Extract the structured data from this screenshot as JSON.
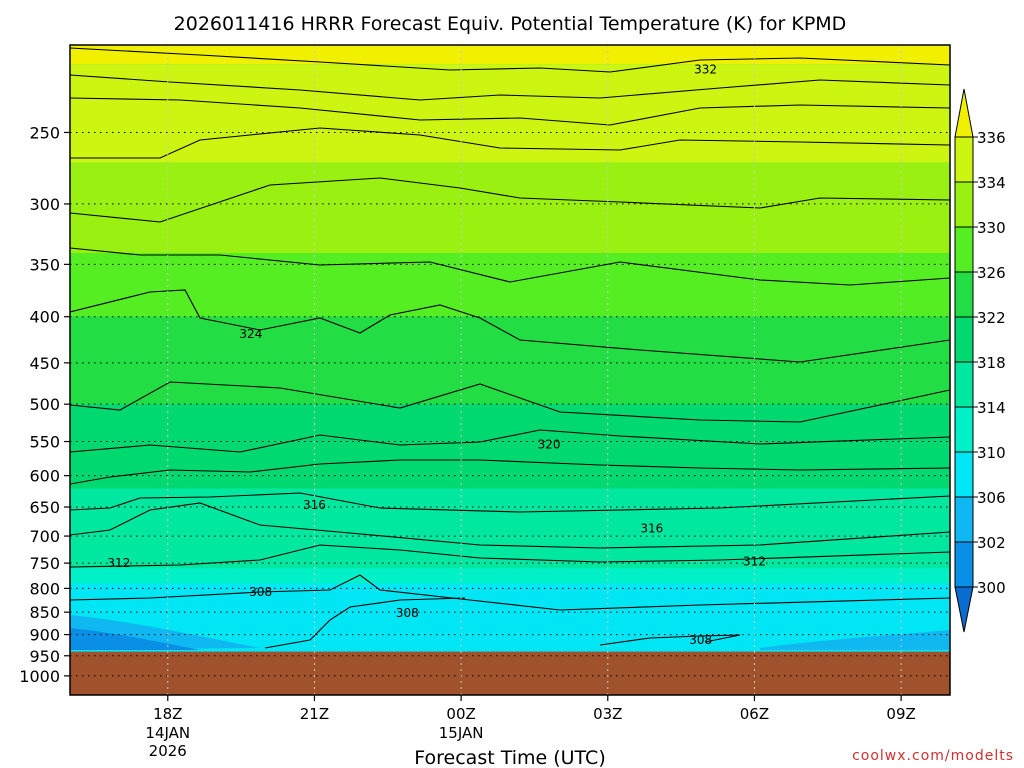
{
  "chart_data": {
    "type": "contour",
    "title": "2026011416 HRRR Forecast Equiv. Potential Temperature (K) for KPMD",
    "xlabel": "Forecast Time (UTC)",
    "credit": "coolwx.com/modelts",
    "x_ticks": [
      {
        "hour": 2,
        "label": "18Z",
        "sub1": "14JAN",
        "sub2": "2026"
      },
      {
        "hour": 5,
        "label": "21Z",
        "sub1": "",
        "sub2": ""
      },
      {
        "hour": 8,
        "label": "00Z",
        "sub1": "15JAN",
        "sub2": ""
      },
      {
        "hour": 11,
        "label": "03Z",
        "sub1": "",
        "sub2": ""
      },
      {
        "hour": 14,
        "label": "06Z",
        "sub1": "",
        "sub2": ""
      },
      {
        "hour": 17,
        "label": "09Z",
        "sub1": "",
        "sub2": ""
      }
    ],
    "x_range_hours": [
      0,
      18
    ],
    "y_ticks": [
      250,
      300,
      350,
      400,
      450,
      500,
      550,
      600,
      650,
      700,
      750,
      800,
      850,
      900,
      950,
      1000
    ],
    "y_range_hpa": [
      1050,
      200
    ],
    "ground_top_hpa": 940,
    "colorbar": {
      "levels": [
        300,
        302,
        306,
        310,
        314,
        318,
        322,
        326,
        330,
        334,
        336
      ],
      "colors": [
        "#0a6cd0",
        "#0a8fe6",
        "#10b8f2",
        "#00e6f5",
        "#00f0c8",
        "#00e8a0",
        "#00d870",
        "#22dd44",
        "#55ee22",
        "#99f011",
        "#ccf511",
        "#f0f000"
      ]
    },
    "contour_labels": [
      {
        "value": "332",
        "hour": 13.0,
        "hpa": 213
      },
      {
        "value": "324",
        "hour": 3.7,
        "hpa": 418
      },
      {
        "value": "320",
        "hour": 9.8,
        "hpa": 554
      },
      {
        "value": "316",
        "hour": 5.0,
        "hpa": 647
      },
      {
        "value": "316",
        "hour": 11.9,
        "hpa": 687
      },
      {
        "value": "312",
        "hour": 1.0,
        "hpa": 750
      },
      {
        "value": "312",
        "hour": 14.0,
        "hpa": 747
      },
      {
        "value": "308",
        "hour": 3.9,
        "hpa": 807
      },
      {
        "value": "308",
        "hour": 6.9,
        "hpa": 852
      },
      {
        "value": "308",
        "hour": 12.9,
        "hpa": 912
      }
    ],
    "grid": true
  }
}
